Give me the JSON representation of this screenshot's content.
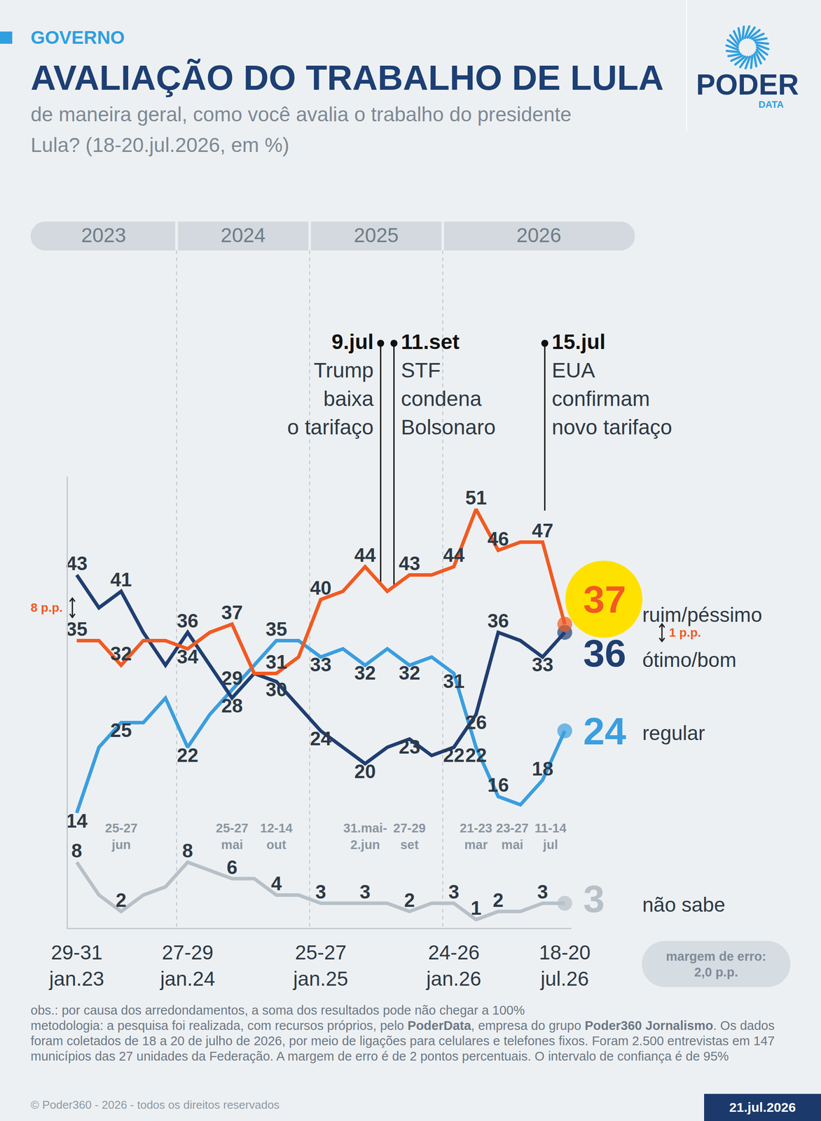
{
  "header": {
    "section": "GOVERNO",
    "brand": "PODER",
    "brand_sub": "DATA"
  },
  "chart_data": {
    "type": "line",
    "title": "AVALIAÇÃO DO TRABALHO DE LULA",
    "subtitle": "de maneira geral, como você avalia o trabalho do presidente Lula? (18-20.jul.2026, em %)",
    "categories": [
      "29-31 jan.23",
      null,
      null,
      null,
      null,
      "27-29 jan.24",
      null,
      null,
      null,
      null,
      null,
      "25-27 jan.25",
      null,
      null,
      null,
      null,
      null,
      "24-26 jan.26",
      null,
      null,
      null,
      null,
      "18-20 jul.26"
    ],
    "series": [
      {
        "name": "ruim/péssimo",
        "color": "#f15a22",
        "line_style": "solid",
        "marker": "circle",
        "values": [
          35,
          35,
          32,
          35,
          35,
          34,
          36,
          37,
          31,
          31,
          33,
          40,
          41,
          44,
          41,
          43,
          43,
          44,
          51,
          46,
          47,
          47,
          37
        ],
        "value_labels": [
          "35",
          null,
          "32",
          null,
          null,
          "34",
          null,
          "37",
          null,
          "31",
          null,
          "40",
          null,
          "44",
          null,
          "43",
          null,
          "44",
          "51",
          "46",
          null,
          "47",
          "37"
        ]
      },
      {
        "name": "ótimo/bom",
        "color": "#1f3e72",
        "line_style": "solid",
        "marker": "circle",
        "values": [
          43,
          39,
          41,
          36,
          32,
          36,
          32,
          28,
          31,
          30,
          27,
          24,
          22,
          20,
          22,
          23,
          21,
          22,
          26,
          36,
          35,
          33,
          36
        ],
        "value_labels": [
          "43",
          null,
          "41",
          null,
          null,
          "36",
          null,
          "28",
          null,
          "30",
          null,
          "24",
          null,
          "20",
          null,
          "23",
          null,
          "22",
          "26",
          "36",
          null,
          "33",
          "36"
        ]
      },
      {
        "name": "regular",
        "color": "#3a9ee0",
        "line_style": "solid",
        "marker": "circle",
        "values": [
          14,
          22,
          25,
          25,
          28,
          22,
          26,
          29,
          32,
          35,
          35,
          33,
          34,
          32,
          34,
          32,
          33,
          31,
          22,
          16,
          15,
          18,
          24
        ],
        "value_labels": [
          "14",
          null,
          "25",
          null,
          null,
          "22",
          null,
          "29",
          null,
          "35",
          null,
          "33",
          null,
          "32",
          null,
          "32",
          null,
          "31",
          "22",
          "16",
          null,
          "18",
          "24"
        ]
      },
      {
        "name": "não sabe",
        "color": "#b7c0c8",
        "line_style": "solid",
        "marker": "circle",
        "values": [
          8,
          4,
          2,
          4,
          5,
          8,
          7,
          6,
          6,
          4,
          4,
          3,
          3,
          3,
          3,
          2,
          3,
          3,
          1,
          2,
          2,
          3,
          3
        ],
        "value_labels": [
          "8",
          null,
          "2",
          null,
          null,
          "8",
          null,
          "6",
          null,
          "4",
          null,
          "3",
          null,
          "3",
          null,
          "2",
          null,
          "3",
          "1",
          "2",
          null,
          "3",
          "3"
        ]
      }
    ],
    "ylim": [
      0,
      55
    ],
    "yticks": [],
    "grid": false,
    "tick_labels": "x",
    "data_labels": true,
    "date_annotations": [
      {
        "x": 2,
        "text": "25-27 jun"
      },
      {
        "x": 7,
        "text": "25-27 mai"
      },
      {
        "x": 9,
        "text": "12-14 out"
      },
      {
        "x": 13,
        "text": "31.mai-2.jun"
      },
      {
        "x": 15,
        "text": "27-29 set"
      },
      {
        "x": 18,
        "text": "21-23 mar"
      },
      {
        "x": 20,
        "text": "23-27 mai"
      },
      {
        "x": 21,
        "text": "11-14 jul"
      }
    ],
    "year_bands": [
      {
        "text": "2023",
        "from": 0,
        "to": 4
      },
      {
        "text": "2024",
        "from": 5,
        "to": 10
      },
      {
        "text": "2025",
        "from": 11,
        "to": 16
      },
      {
        "text": "2026",
        "from": 17,
        "to": 22
      }
    ],
    "events": [
      {
        "x": 13.7,
        "date": "9.jul",
        "lines": [
          "Trump",
          "baixa",
          "o tarifaço"
        ]
      },
      {
        "x": 14.3,
        "date": "11.set",
        "lines": [
          "STF",
          "condena",
          "Bolsonaro"
        ]
      },
      {
        "x": 21.1,
        "date": "15.jul",
        "lines": [
          "EUA",
          "confirmam",
          "novo tarifaço"
        ]
      }
    ],
    "gap_labels": {
      "start": "8 p.p.",
      "end": "1 p.p."
    },
    "margin_of_error": "margem de erro: 2,0 p.p."
  },
  "footer": {
    "obs": "obs.: por causa dos arredondamentos, a soma dos resultados pode não chegar a 100%",
    "methodology": [
      {
        "text": "metodologia: a pesquisa foi realizada, com recursos próprios, pelo ",
        "bold": false
      },
      {
        "text": "PoderData",
        "bold": true
      },
      {
        "text": ", empresa do grupo ",
        "bold": false
      },
      {
        "text": "Poder360 Jornalismo",
        "bold": true
      },
      {
        "text": ". Os dados foram coletados de 18 a 20 de julho de 2026, por meio de ligações para celulares e telefones fixos. Foram 2.500 entrevistas em 147 municípios das 27 unidades da Federação. A margem de erro é de 2 pontos percentuais. O intervalo de confiança é de 95%",
        "bold": false
      }
    ],
    "copyright": "© Poder360 - 2026 - todos os direitos reservados",
    "date": "21.jul.2026"
  }
}
